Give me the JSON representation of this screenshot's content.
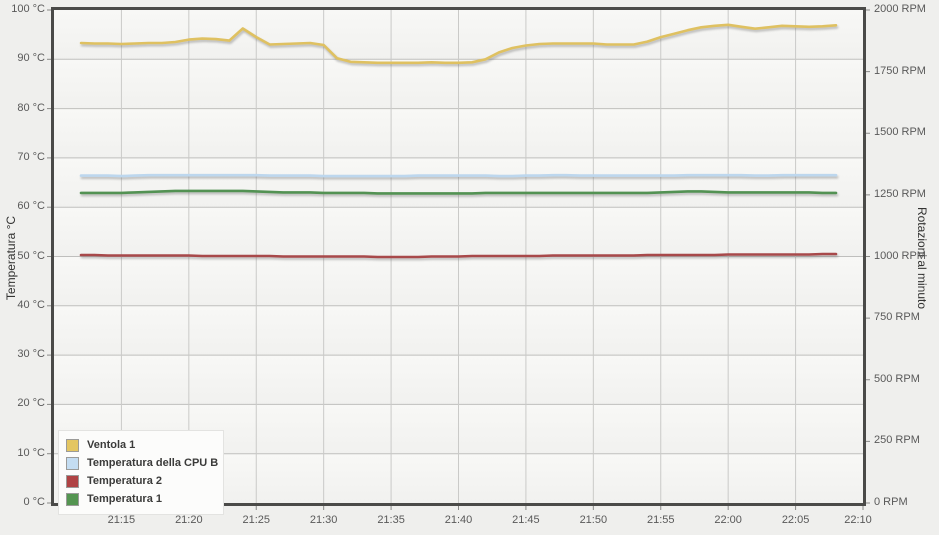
{
  "chart_data": {
    "type": "line",
    "title": "",
    "x_axis": {
      "start": "21:10",
      "end": "22:10",
      "tick_interval_minutes": 5,
      "tick_labels": [
        "21:15",
        "21:20",
        "21:25",
        "21:30",
        "21:35",
        "21:40",
        "21:45",
        "21:50",
        "21:55",
        "22:00",
        "22:05",
        "22:10"
      ]
    },
    "left_axis": {
      "title": "Temperatura °C",
      "min": 0,
      "max": 100,
      "tick_labels_top_to_bottom": [
        "100 °C",
        "90 °C",
        "80 °C",
        "70 °C",
        "60 °C",
        "50 °C",
        "40 °C",
        "30 °C",
        "20 °C",
        "10 °C",
        "0 °C"
      ]
    },
    "right_axis": {
      "title": "Rotazioni al minuto",
      "min": 0,
      "max": 2000,
      "tick_labels_top_to_bottom": [
        "2000 RPM",
        "1750 RPM",
        "1500 RPM",
        "1250 RPM",
        "1000 RPM",
        "750 RPM",
        "500 RPM",
        "250 RPM",
        "0 RPM"
      ]
    },
    "grid": true,
    "legend_position": "bottom-left",
    "series_start_minute_after_2110": 2,
    "series_sample_interval_minutes": 1,
    "series": [
      {
        "name": "Ventola 1",
        "axis": "rpm",
        "color": "#DFC161",
        "swatch_color": "#E4C662",
        "values": [
          1866,
          1864,
          1864,
          1862,
          1864,
          1866,
          1866,
          1870,
          1880,
          1884,
          1882,
          1876,
          1925,
          1890,
          1860,
          1862,
          1864,
          1866,
          1858,
          1804,
          1790,
          1788,
          1786,
          1786,
          1786,
          1786,
          1788,
          1786,
          1786,
          1788,
          1800,
          1828,
          1846,
          1856,
          1862,
          1864,
          1864,
          1864,
          1864,
          1860,
          1860,
          1860,
          1872,
          1890,
          1904,
          1918,
          1930,
          1936,
          1940,
          1932,
          1924,
          1930,
          1936,
          1934,
          1932,
          1934,
          1938
        ]
      },
      {
        "name": "Temperatura della CPU B",
        "axis": "temp",
        "color": "#BDD7EE",
        "swatch_color": "#C4DDF2",
        "values": [
          66.4,
          66.4,
          66.4,
          66.3,
          66.4,
          66.5,
          66.5,
          66.5,
          66.5,
          66.5,
          66.5,
          66.5,
          66.5,
          66.5,
          66.4,
          66.4,
          66.4,
          66.4,
          66.3,
          66.3,
          66.3,
          66.3,
          66.3,
          66.3,
          66.3,
          66.4,
          66.4,
          66.4,
          66.4,
          66.4,
          66.4,
          66.3,
          66.3,
          66.4,
          66.4,
          66.5,
          66.5,
          66.4,
          66.4,
          66.4,
          66.4,
          66.4,
          66.4,
          66.4,
          66.4,
          66.5,
          66.5,
          66.5,
          66.5,
          66.5,
          66.4,
          66.4,
          66.5,
          66.5,
          66.5,
          66.5,
          66.5
        ]
      },
      {
        "name": "Temperatura 2",
        "axis": "temp",
        "color": "#A8494A",
        "swatch_color": "#AF4344",
        "values": [
          50.3,
          50.3,
          50.2,
          50.2,
          50.2,
          50.2,
          50.2,
          50.2,
          50.2,
          50.1,
          50.1,
          50.1,
          50.1,
          50.1,
          50.1,
          50.0,
          50.0,
          50.0,
          50.0,
          50.0,
          50.0,
          50.0,
          49.9,
          49.9,
          49.9,
          49.9,
          50.0,
          50.0,
          50.0,
          50.1,
          50.1,
          50.1,
          50.1,
          50.1,
          50.1,
          50.2,
          50.2,
          50.2,
          50.2,
          50.2,
          50.2,
          50.2,
          50.3,
          50.3,
          50.3,
          50.3,
          50.3,
          50.3,
          50.4,
          50.4,
          50.4,
          50.4,
          50.4,
          50.4,
          50.4,
          50.5,
          50.5
        ]
      },
      {
        "name": "Temperatura 1",
        "axis": "temp",
        "color": "#539253",
        "swatch_color": "#549551",
        "values": [
          62.9,
          62.9,
          62.9,
          62.9,
          63.0,
          63.1,
          63.2,
          63.3,
          63.3,
          63.3,
          63.3,
          63.3,
          63.3,
          63.2,
          63.1,
          63.0,
          63.0,
          63.0,
          62.9,
          62.9,
          62.9,
          62.9,
          62.8,
          62.8,
          62.8,
          62.8,
          62.8,
          62.8,
          62.8,
          62.8,
          62.9,
          62.9,
          62.9,
          62.9,
          62.9,
          62.9,
          62.9,
          62.9,
          62.9,
          62.9,
          62.9,
          62.9,
          62.9,
          63.0,
          63.1,
          63.2,
          63.2,
          63.1,
          63.0,
          63.0,
          63.0,
          63.0,
          63.0,
          63.0,
          63.0,
          62.9,
          62.9
        ]
      }
    ],
    "colors": {
      "plot_border": "#4A4A48",
      "grid_horizontal": "#BFBFBD",
      "grid_vertical": "#CACAC8",
      "tick_mark": "#8A8A88",
      "background": "#EFEFED"
    }
  }
}
